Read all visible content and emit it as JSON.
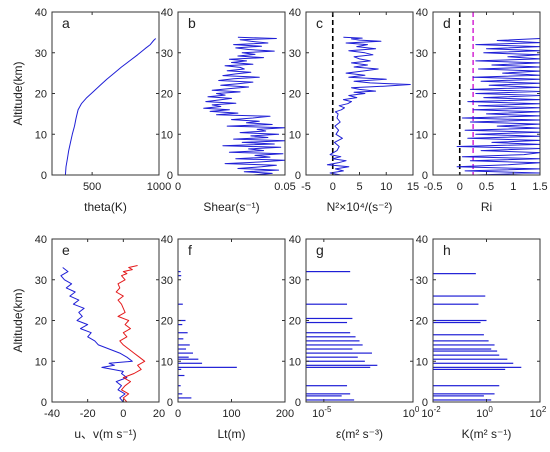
{
  "colors": {
    "blue": "#1f1fd6",
    "red": "#e41a1c",
    "magenta": "#d633d6",
    "black": "#000000",
    "axis": "#333333"
  },
  "chart_data": [
    {
      "panel": "a",
      "type": "line",
      "xlabel": "theta(K)",
      "ylabel": "Altitude(km)",
      "xlim": [
        200,
        1000
      ],
      "ylim": [
        0,
        40
      ],
      "xticks": [
        500,
        1000
      ],
      "yticks": [
        0,
        10,
        20,
        30,
        40
      ],
      "series": [
        {
          "color": "#1f1fd6",
          "x": [
            300,
            305,
            315,
            325,
            338,
            352,
            368,
            380,
            395,
            420,
            460,
            510,
            560,
            610,
            665,
            720,
            780,
            840,
            895,
            935,
            960,
            975
          ],
          "y": [
            0,
            2,
            4,
            6,
            8,
            10,
            12,
            14,
            16,
            17.5,
            19,
            20.5,
            22,
            23.5,
            25,
            26.5,
            28,
            29.5,
            31,
            32,
            33,
            33.5
          ]
        }
      ]
    },
    {
      "panel": "b",
      "type": "line",
      "xlabel": "Shear(s⁻¹)",
      "xlim": [
        0,
        0.05
      ],
      "ylim": [
        0,
        40
      ],
      "xticks": [
        0,
        0.05
      ],
      "xticklabels": [
        "0",
        "0.05"
      ],
      "yticks": [
        0,
        10,
        20,
        30,
        40
      ],
      "series": [
        {
          "color": "#1f1fd6",
          "x": [
            0.035,
            0.044,
            0.031,
            0.047,
            0.028,
            0.039,
            0.046,
            0.022,
            0.038,
            0.05,
            0.027,
            0.043,
            0.036,
            0.049,
            0.024,
            0.04,
            0.033,
            0.048,
            0.021,
            0.045,
            0.03,
            0.05,
            0.026,
            0.042,
            0.034,
            0.047,
            0.029,
            0.041,
            0.037,
            0.05,
            0.023,
            0.044,
            0.032,
            0.038,
            0.025,
            0.035,
            0.043,
            0.018,
            0.028,
            0.015,
            0.024,
            0.012,
            0.02,
            0.016,
            0.027,
            0.013,
            0.019,
            0.025,
            0.014,
            0.022,
            0.018,
            0.029,
            0.016,
            0.024,
            0.033,
            0.02,
            0.028,
            0.035,
            0.019,
            0.026,
            0.038,
            0.021,
            0.027,
            0.034,
            0.023,
            0.031,
            0.029,
            0.022,
            0.035,
            0.025,
            0.032,
            0.024,
            0.04,
            0.028,
            0.036,
            0.03,
            0.045,
            0.033,
            0.027,
            0.039,
            0.026,
            0.042,
            0.034,
            0.029,
            0.046,
            0.028
          ],
          "y": [
            0,
            0.4,
            0.8,
            1.2,
            1.6,
            2,
            2.4,
            2.8,
            3.2,
            3.6,
            4,
            4.4,
            4.8,
            5.2,
            5.6,
            6,
            6.4,
            6.8,
            7.2,
            7.6,
            8,
            8.4,
            8.8,
            9.2,
            9.6,
            10,
            10.4,
            10.8,
            11.2,
            11.6,
            12,
            12.4,
            12.8,
            13.2,
            13.6,
            14,
            14.4,
            14.8,
            15.2,
            15.6,
            16,
            16.4,
            16.8,
            17.2,
            17.6,
            18,
            18.4,
            18.8,
            19.2,
            19.6,
            20,
            20.4,
            20.8,
            21.2,
            21.6,
            22,
            22.4,
            22.8,
            23.2,
            23.6,
            24,
            24.4,
            24.8,
            25.2,
            25.6,
            26,
            26.4,
            26.8,
            27.2,
            27.6,
            28,
            28.4,
            28.8,
            29.2,
            29.6,
            30,
            30.4,
            30.8,
            31.2,
            31.6,
            32,
            32.4,
            32.8,
            33.2,
            33.5,
            33.8
          ]
        }
      ]
    },
    {
      "panel": "c",
      "type": "line",
      "xlabel": "N²×10⁴/(s⁻²)",
      "xlim": [
        -5,
        15
      ],
      "ylim": [
        0,
        40
      ],
      "xticks": [
        -5,
        0,
        5,
        10,
        15
      ],
      "yticks": [
        0,
        10,
        20,
        30,
        40
      ],
      "refline": {
        "x": 0,
        "color": "#000000",
        "dash": true
      },
      "series": [
        {
          "color": "#1f1fd6",
          "x": [
            1.5,
            -0.5,
            2,
            0.5,
            3,
            -1,
            1,
            2.5,
            0,
            1.5,
            -0.5,
            0.8,
            1.2,
            0.3,
            1.8,
            0.6,
            1.1,
            0.4,
            1.4,
            0.8,
            1,
            0.5,
            1.6,
            2.2,
            1.2,
            2.8,
            3.5,
            2,
            4.5,
            3,
            6,
            4,
            8,
            5,
            3.5,
            9.5,
            14.5,
            7,
            4,
            10,
            3,
            6,
            2.5,
            5.5,
            8.5,
            4,
            6.5,
            3.5,
            7,
            5,
            4,
            7.5,
            6,
            3,
            8,
            4.5,
            6.5,
            2.5,
            9,
            5,
            3.5,
            5.5,
            2
          ],
          "y": [
            0,
            0.5,
            1,
            1.5,
            2,
            2.5,
            3,
            3.5,
            4,
            4.5,
            5,
            6,
            7,
            8,
            9,
            10,
            11,
            12,
            13,
            14,
            15,
            15.5,
            16,
            16.5,
            17,
            17.5,
            18,
            18.5,
            19,
            19.5,
            20,
            20.3,
            20.6,
            21,
            21.4,
            21.8,
            22.2,
            22.6,
            23,
            23.5,
            24,
            24.5,
            25,
            25.5,
            26,
            26.5,
            27,
            27.5,
            28,
            28.5,
            29,
            29.5,
            30,
            30.5,
            31,
            31.5,
            32,
            32.4,
            32.8,
            33.1,
            33.4,
            33.6,
            33.8
          ]
        }
      ]
    },
    {
      "panel": "d",
      "type": "line",
      "xlabel": "Ri",
      "xlim": [
        -0.5,
        1.5
      ],
      "ylim": [
        0,
        40
      ],
      "xticks": [
        -0.5,
        0,
        0.5,
        1,
        1.5
      ],
      "xticklabels": [
        "-0.5",
        "0",
        "0.5",
        "1",
        "1.5"
      ],
      "yticks": [
        0,
        10,
        20,
        30,
        40
      ],
      "reflines": [
        {
          "x": 0,
          "color": "#000000",
          "dash": true
        },
        {
          "x": 0.25,
          "color": "#d633d6",
          "dash": true
        }
      ],
      "series": [
        {
          "color": "#1f1fd6",
          "x": [
            0.3,
            1.5,
            0.1,
            1.5,
            -0.05,
            0.9,
            1.5,
            0.2,
            1.5,
            0.05,
            1.2,
            1.5,
            0.4,
            1.5,
            -0.05,
            1.5,
            0.6,
            1.5,
            0.15,
            1.5,
            0.3,
            1.5,
            0.1,
            1.5,
            0.7,
            1.5,
            0.2,
            1.5,
            0.05,
            1.5,
            0.5,
            1.5,
            0.25,
            1.5,
            0.35,
            1.5,
            0.15,
            1.5,
            0.45,
            1.5,
            0.3,
            1.5,
            0.2,
            1.5,
            0.55,
            1.5,
            0.4,
            1.5,
            0.25,
            1.5,
            0.8,
            1.5,
            0.35,
            1.5,
            0.6,
            1.5,
            0.3,
            1.5,
            0.9,
            1.5,
            0.45,
            1.5,
            0.5,
            1.5,
            0.3,
            1.5,
            0.7,
            1.5
          ],
          "y": [
            0,
            0.5,
            1,
            1.5,
            2,
            2.5,
            3,
            3.5,
            4,
            4.5,
            5,
            5.5,
            6,
            6.5,
            7,
            7.5,
            8,
            8.5,
            9,
            9.5,
            10,
            10.5,
            11,
            11.5,
            12,
            12.5,
            13,
            13.5,
            14,
            14.5,
            15,
            15.5,
            16,
            16.5,
            17,
            17.5,
            18,
            18.5,
            19,
            19.5,
            20,
            20.5,
            21,
            21.5,
            22,
            22.5,
            23,
            23.5,
            24,
            24.5,
            25,
            25.5,
            26,
            26.5,
            27,
            27.5,
            28,
            28.5,
            29,
            29.5,
            30,
            30.5,
            31,
            31.5,
            32,
            32.5,
            33,
            33.5
          ]
        }
      ]
    },
    {
      "panel": "e",
      "type": "line",
      "xlabel": "u、v(m s⁻¹)",
      "ylabel": "Altitude(km)",
      "xlim": [
        -40,
        20
      ],
      "ylim": [
        0,
        40
      ],
      "xticks": [
        -40,
        -20,
        0,
        20
      ],
      "yticks": [
        0,
        10,
        20,
        30,
        40
      ],
      "series": [
        {
          "color": "#1f1fd6",
          "x": [
            0,
            -2,
            1,
            -3,
            -1,
            -4,
            2,
            -1,
            0,
            -6,
            -12,
            -5,
            -8,
            5,
            2,
            -2,
            -8,
            -14,
            -16,
            -20,
            -18,
            -24,
            -20,
            -26,
            -23,
            -25,
            -22,
            -28,
            -25,
            -30,
            -27,
            -32,
            -29,
            -33,
            -35,
            -31,
            -34
          ],
          "y": [
            0,
            1,
            2,
            3,
            4,
            5,
            6,
            7,
            7.5,
            8,
            8.5,
            9,
            9.5,
            10,
            11,
            12,
            13,
            14,
            15,
            16,
            17,
            18,
            19,
            20,
            21,
            22,
            23,
            24,
            25,
            26,
            27,
            28,
            29,
            30,
            31,
            32,
            33
          ]
        },
        {
          "color": "#e41a1c",
          "x": [
            2,
            0,
            3,
            -1,
            1,
            4,
            0,
            6,
            10,
            8,
            12,
            9,
            6,
            3,
            0,
            -2,
            2,
            0,
            4,
            1,
            3,
            -3,
            1,
            0,
            -1,
            -3,
            0,
            -4,
            -2,
            -3,
            1,
            -1,
            2,
            0,
            5,
            3,
            8
          ],
          "y": [
            0,
            1,
            2,
            3,
            4,
            5,
            6,
            7,
            8,
            9,
            10,
            11,
            12,
            13,
            14,
            15,
            16,
            17,
            18,
            19,
            20,
            21,
            22,
            23,
            24,
            25,
            26,
            27,
            28,
            29,
            30,
            31,
            31.5,
            32,
            32.5,
            33,
            33.5
          ]
        }
      ]
    },
    {
      "panel": "f",
      "type": "bar",
      "orientation": "horizontal",
      "xlabel": "Lt(m)",
      "xlim": [
        0,
        200
      ],
      "ylim": [
        0,
        40
      ],
      "xticks": [
        0,
        100,
        200
      ],
      "yticks": [
        0,
        10,
        20,
        30,
        40
      ],
      "series": [
        {
          "color": "#1f1fd6",
          "x": [
            25,
            8,
            5,
            12,
            6,
            110,
            45,
            38,
            20,
            28,
            15,
            22,
            10,
            18,
            8,
            14,
            9,
            6,
            5
          ],
          "y": [
            1,
            2,
            4,
            6.5,
            8,
            8.5,
            9.5,
            10.5,
            11,
            12,
            13,
            14,
            15.5,
            17,
            19,
            20,
            24,
            31,
            32
          ]
        }
      ]
    },
    {
      "panel": "g",
      "type": "bar",
      "orientation": "horizontal",
      "xlabel": "ε(m² s⁻³)",
      "xscale": "log",
      "xlim": [
        1e-06,
        1
      ],
      "ylim": [
        0,
        40
      ],
      "yticks": [
        0,
        10,
        20,
        30,
        40
      ],
      "xticks": [
        1e-05,
        1
      ],
      "xticklabels_base": [
        "10",
        "10"
      ],
      "xticklabels_exp": [
        "-5",
        "0"
      ],
      "series": [
        {
          "color": "#1f1fd6",
          "x": [
            0.0005,
            0.0001,
            0.0003,
            0.0002,
            0.004,
            0.01,
            0.002,
            0.0008,
            0.005,
            0.0004,
            0.0015,
            0.001,
            0.0006,
            0.0003,
            0.0002,
            0.0004,
            0.0002,
            0.0003
          ],
          "y": [
            0.5,
            1.5,
            2,
            4,
            8.5,
            9,
            10,
            11,
            12,
            13,
            14,
            15,
            16,
            17,
            19.5,
            20.5,
            24,
            32
          ]
        }
      ]
    },
    {
      "panel": "h",
      "type": "bar",
      "orientation": "horizontal",
      "xlabel": "K(m² s⁻¹)",
      "xscale": "log",
      "xlim": [
        0.01,
        100
      ],
      "ylim": [
        0,
        40
      ],
      "yticks": [
        0,
        10,
        20,
        30,
        40
      ],
      "xticks": [
        0.01,
        1,
        100
      ],
      "xticklabels_base": [
        "10",
        "10",
        "10"
      ],
      "xticklabels_exp": [
        "-2",
        "0",
        "2"
      ],
      "series": [
        {
          "color": "#1f1fd6",
          "x": [
            1.5,
            0.8,
            2,
            3,
            5,
            20,
            10,
            6,
            3,
            2.5,
            1.5,
            2,
            1.2,
            0.8,
            0.6,
            1,
            0.5,
            0.9,
            0.4
          ],
          "y": [
            0.5,
            1.5,
            2,
            4,
            8,
            8.5,
            9.5,
            10.5,
            11.5,
            12.5,
            13,
            14,
            15,
            16.5,
            19.5,
            20,
            24,
            26,
            31.5
          ]
        }
      ]
    }
  ]
}
